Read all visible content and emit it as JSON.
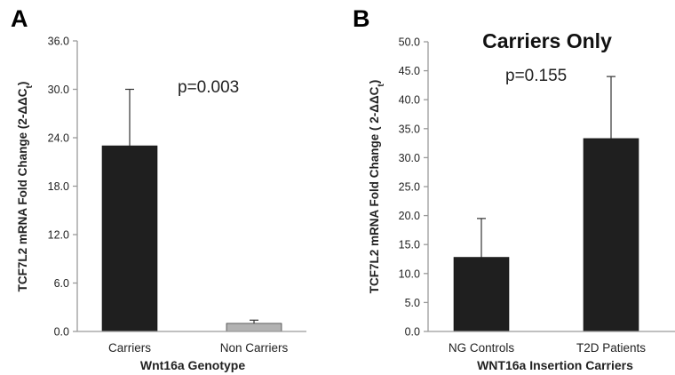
{
  "chart_data": [
    {
      "panel": "A",
      "type": "bar",
      "title": "",
      "categories": [
        "Carriers",
        "Non Carriers"
      ],
      "values": [
        23.0,
        1.0
      ],
      "errors": [
        7.0,
        0.4
      ],
      "colors": [
        "#1f1f1f",
        "#b2b2b2"
      ],
      "xlabel": "Wnt16a Genotype",
      "ylabel": "TCF7L2 mRNA Fold Change (2-ΔΔC",
      "ylabel_sub": "t",
      "ylabel_close": ")",
      "ylim": [
        0,
        36
      ],
      "yticks": [
        "0.0",
        "6.0",
        "12.0",
        "18.0",
        "24.0",
        "30.0",
        "36.0"
      ],
      "annotation": "p=0.003",
      "grid": false
    },
    {
      "panel": "B",
      "type": "bar",
      "title": "Carriers Only",
      "categories": [
        "NG Controls",
        "T2D Patients"
      ],
      "values": [
        12.8,
        33.3
      ],
      "errors": [
        6.7,
        10.7
      ],
      "colors": [
        "#1f1f1f",
        "#1f1f1f"
      ],
      "xlabel": "WNT16a  Insertion Carriers",
      "ylabel": "TCF7L2 mRNA Fold Change ( 2-ΔΔC",
      "ylabel_sub": "t",
      "ylabel_close": ")",
      "ylim": [
        0,
        50
      ],
      "yticks": [
        "0.0",
        "5.0",
        "10.0",
        "15.0",
        "20.0",
        "25.0",
        "30.0",
        "35.0",
        "40.0",
        "45.0",
        "50.0"
      ],
      "annotation": "p=0.155",
      "grid": false
    }
  ]
}
